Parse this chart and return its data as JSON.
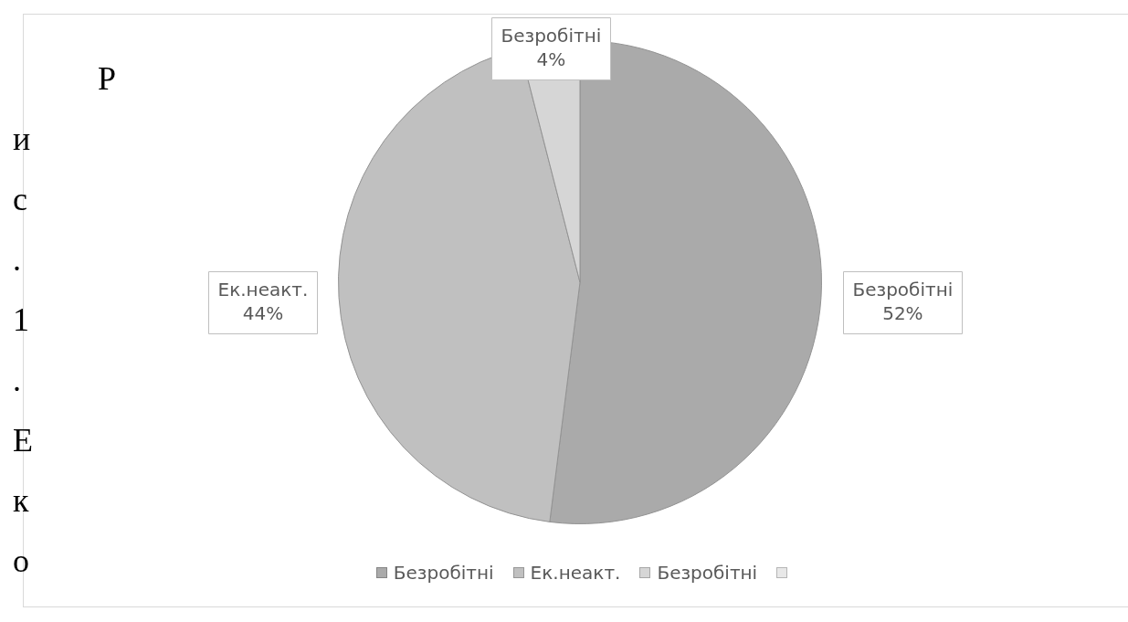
{
  "chart_data": {
    "type": "pie",
    "categories": [
      "Безробітні",
      "Ек.неакт.",
      "Безробітні",
      null
    ],
    "values": [
      52,
      44,
      4,
      0
    ],
    "colors": [
      "#aaaaaa",
      "#c0c0c0",
      "#d6d6d6",
      "#e8e8e8"
    ],
    "value_labels": [
      "52%",
      "44%",
      "4%",
      null
    ],
    "legend": "bottom",
    "annotations": [
      "Рис. 1. Еко"
    ]
  }
}
